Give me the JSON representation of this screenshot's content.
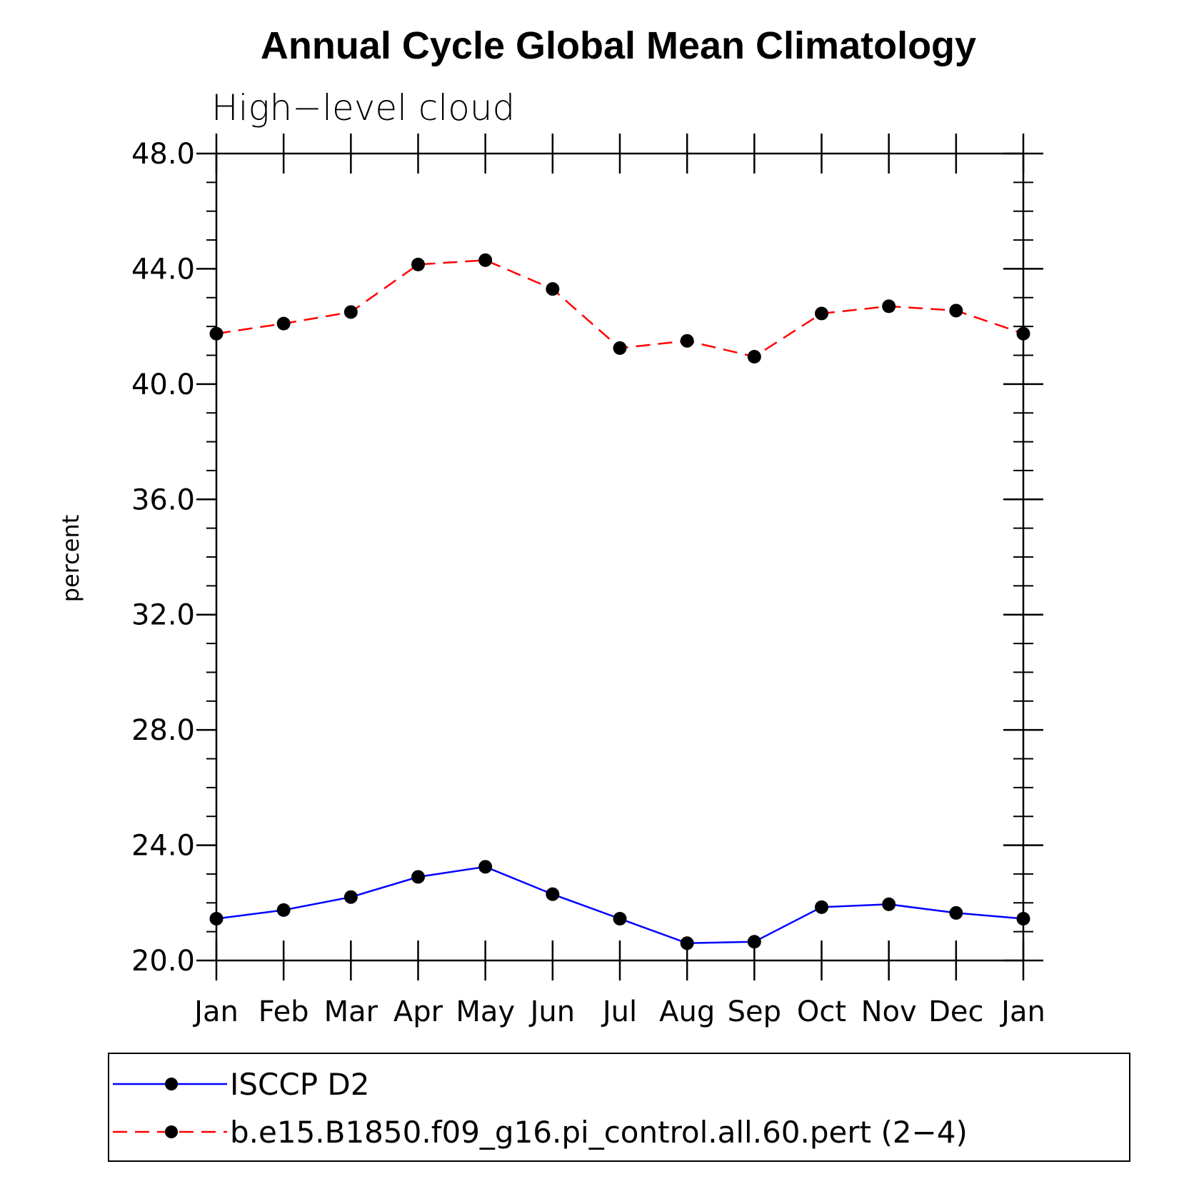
{
  "chart_data": {
    "type": "line",
    "title": "Annual Cycle Global Mean Climatology",
    "subtitle": "High−level cloud",
    "xlabel": "",
    "ylabel": "percent",
    "categories": [
      "Jan",
      "Feb",
      "Mar",
      "Apr",
      "May",
      "Jun",
      "Jul",
      "Aug",
      "Sep",
      "Oct",
      "Nov",
      "Dec",
      "Jan"
    ],
    "ylim": [
      20.0,
      48.0
    ],
    "yticks": [
      "20.0",
      "24.0",
      "28.0",
      "32.0",
      "36.0",
      "40.0",
      "44.0",
      "48.0"
    ],
    "ytick_values": [
      20,
      24,
      28,
      32,
      36,
      40,
      44,
      48
    ],
    "grid": false,
    "legend_position": "bottom",
    "series": [
      {
        "name": "ISCCP D2",
        "color": "#0000ff",
        "style": "solid",
        "values": [
          21.45,
          21.75,
          22.2,
          22.9,
          23.25,
          22.3,
          21.45,
          20.6,
          20.65,
          21.85,
          21.95,
          21.65,
          21.45
        ]
      },
      {
        "name": "b.e15.B1850.f09_g16.pi_control.all.60.pert (2−4)",
        "color": "#ff0000",
        "style": "dashed",
        "values": [
          41.75,
          42.1,
          42.5,
          44.15,
          44.3,
          43.3,
          41.25,
          41.5,
          40.95,
          42.45,
          42.7,
          42.55,
          41.75
        ]
      }
    ]
  }
}
